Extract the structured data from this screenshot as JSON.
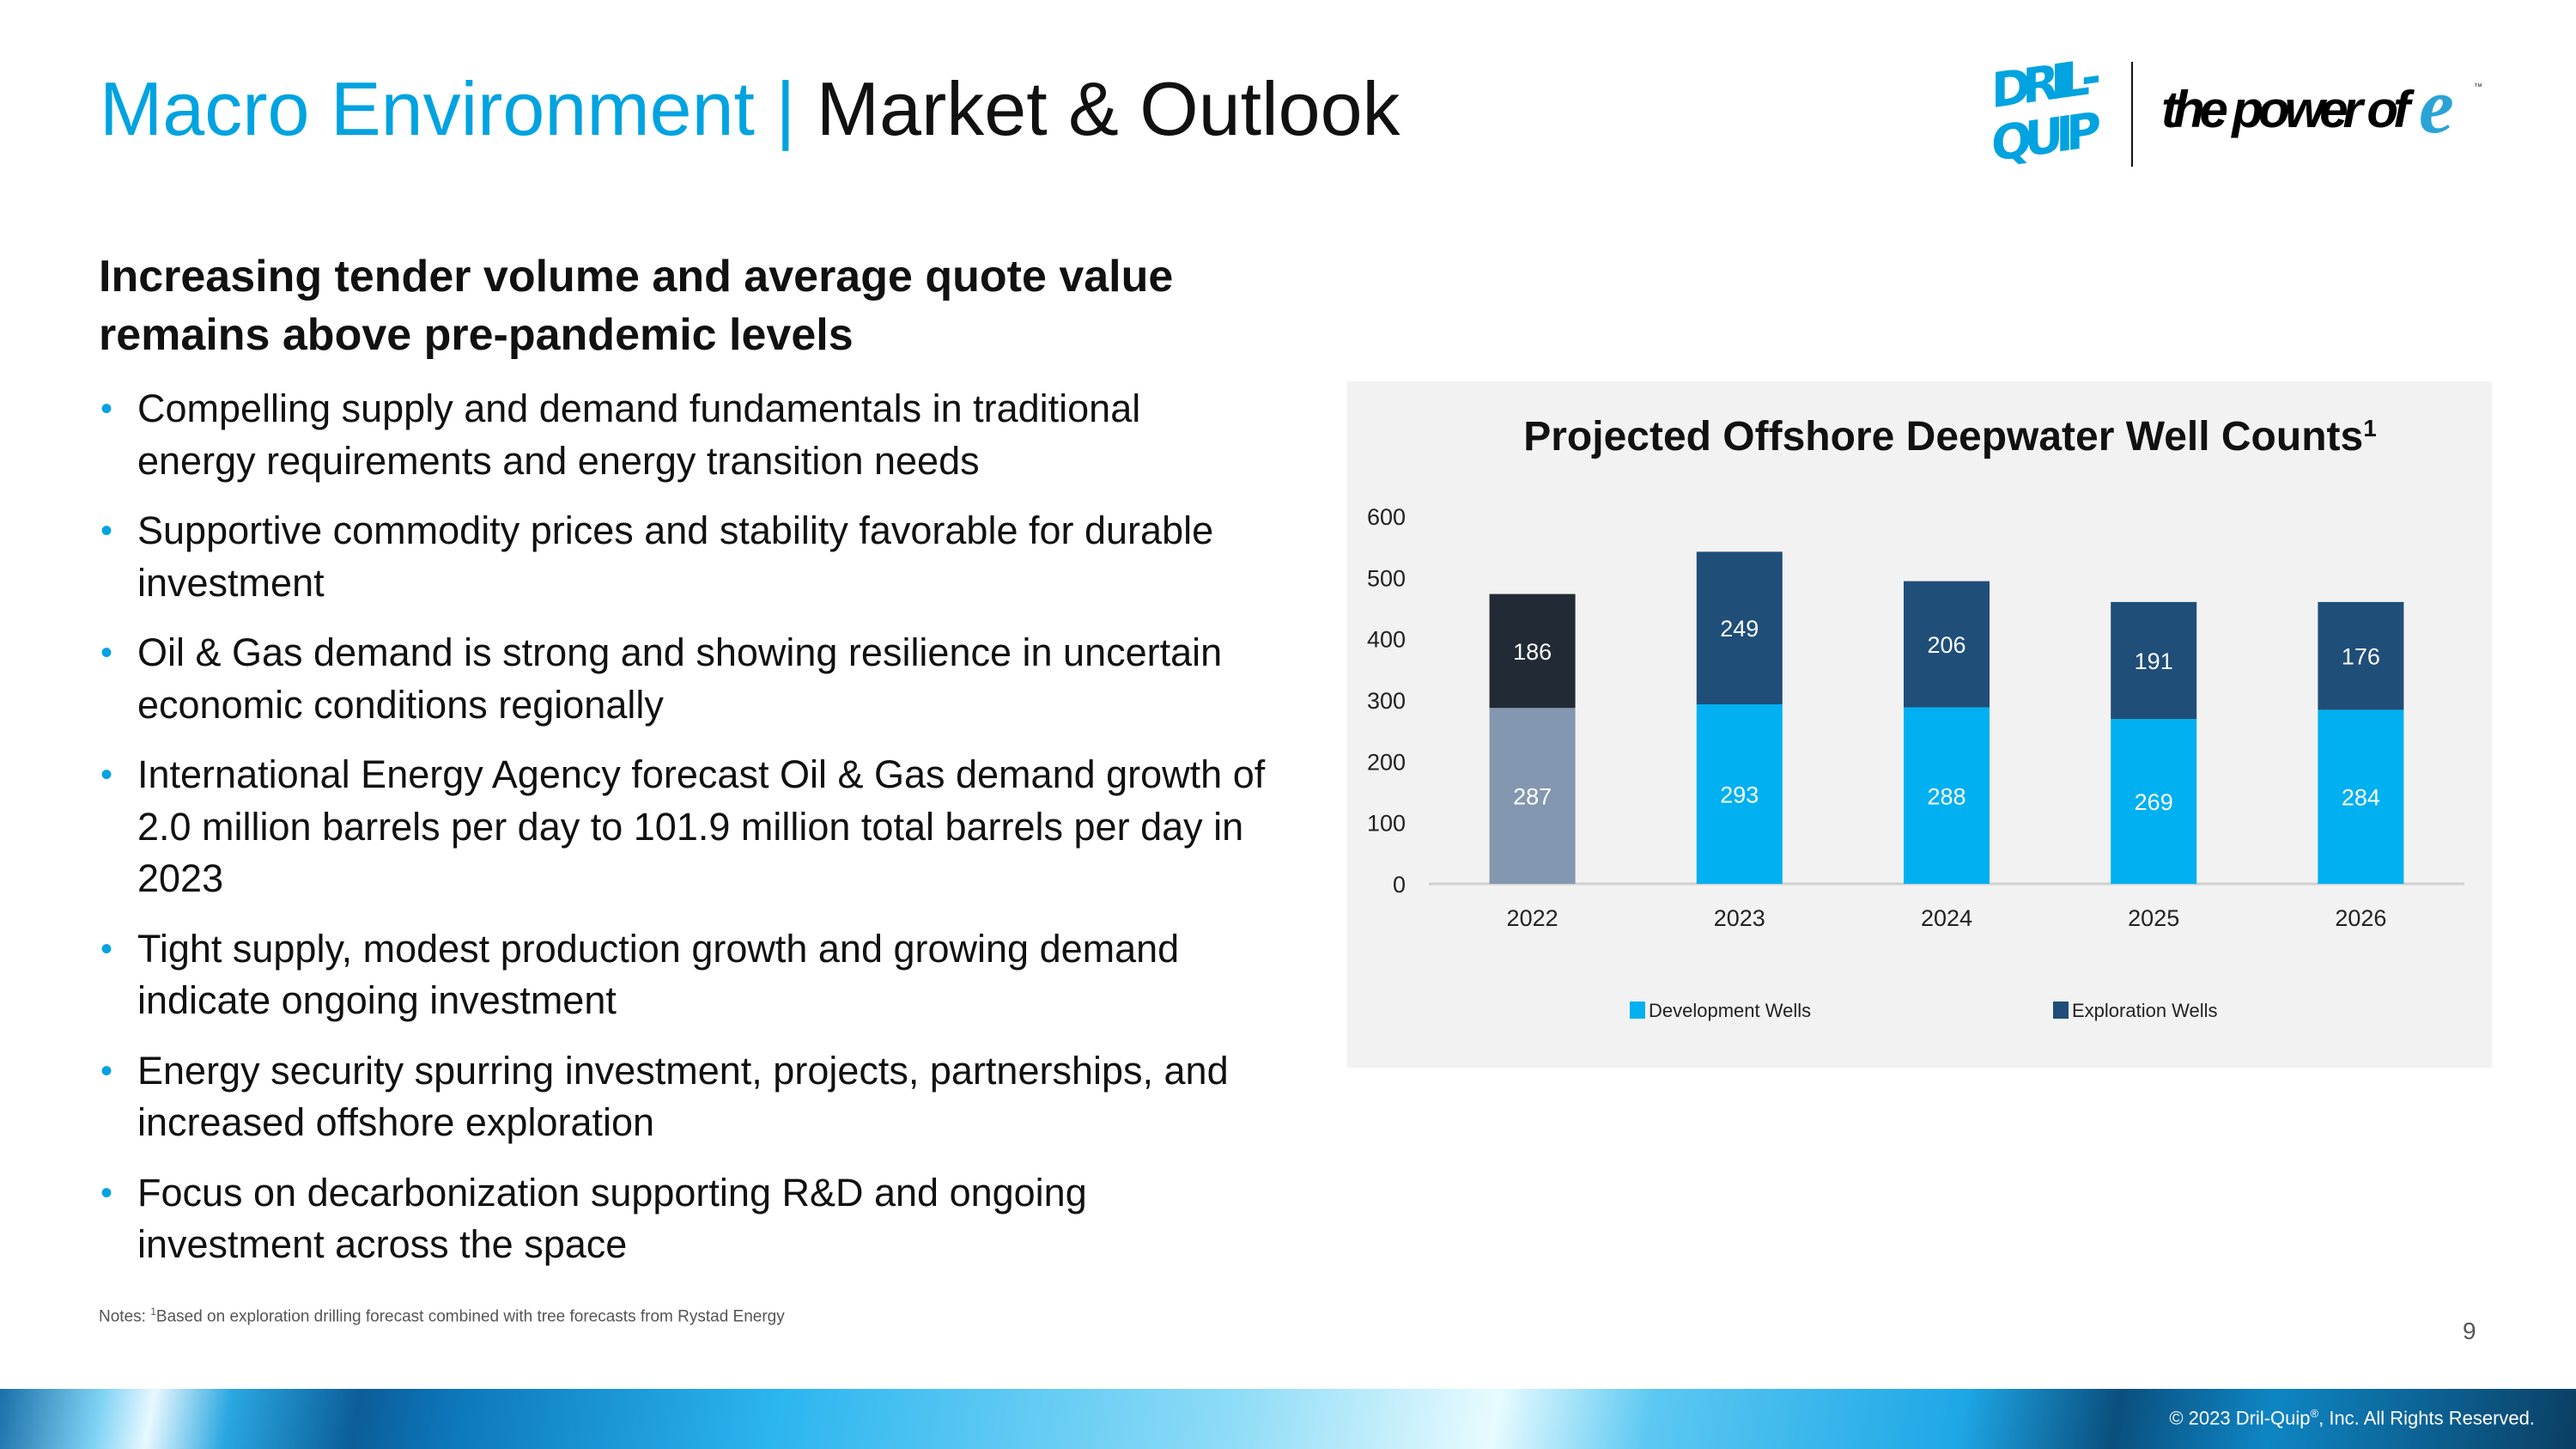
{
  "header": {
    "title_part1": "Macro Environment",
    "title_sep": "|",
    "title_part2": "Market & Outlook",
    "logo_text": "DRIL-QUIP",
    "tagline": "the power of",
    "tagline_mark": "e"
  },
  "main": {
    "heading_line1": "Increasing tender volume and average quote value",
    "heading_line2": "remains above pre-pandemic levels",
    "bullets": [
      "Compelling supply and demand fundamentals in traditional energy requirements and energy transition needs",
      "Supportive commodity prices and stability favorable for durable investment",
      "Oil & Gas demand is strong and showing resilience in uncertain economic conditions regionally",
      "International Energy Agency forecast Oil & Gas demand growth of 2.0 million barrels per day to 101.9 million total barrels per day in 2023",
      "Tight supply, modest production growth and growing demand indicate ongoing investment",
      "Energy security spurring investment, projects, partnerships, and increased offshore exploration",
      "Focus on decarbonization supporting R&D and ongoing investment across the space"
    ]
  },
  "chart_data": {
    "type": "bar",
    "stacked": true,
    "title": "Projected Offshore Deepwater Well Counts",
    "title_superscript": "1",
    "categories": [
      "2022",
      "2023",
      "2024",
      "2025",
      "2026"
    ],
    "series": [
      {
        "name": "Development Wells",
        "values": [
          287,
          293,
          288,
          269,
          284
        ],
        "color": "#00B0F0",
        "first_category_color": "#8497B0"
      },
      {
        "name": "Exploration Wells",
        "values": [
          186,
          249,
          206,
          191,
          176
        ],
        "color": "#1F4E79",
        "first_category_color": "#222A35"
      }
    ],
    "ylim": [
      0,
      600
    ],
    "yticks": [
      0,
      100,
      200,
      300,
      400,
      500,
      600
    ],
    "xlabel": "",
    "ylabel": "",
    "grid": false,
    "legend_position": "bottom"
  },
  "footer": {
    "notes_prefix": "Notes: ",
    "notes_sup": "1",
    "notes_text": "Based on exploration drilling forecast combined with tree forecasts from Rystad Energy",
    "page_number": "9",
    "copyright_a": "© 2023 Dril-Quip",
    "copyright_sup": "®",
    "copyright_b": ", Inc. All Rights Reserved."
  }
}
